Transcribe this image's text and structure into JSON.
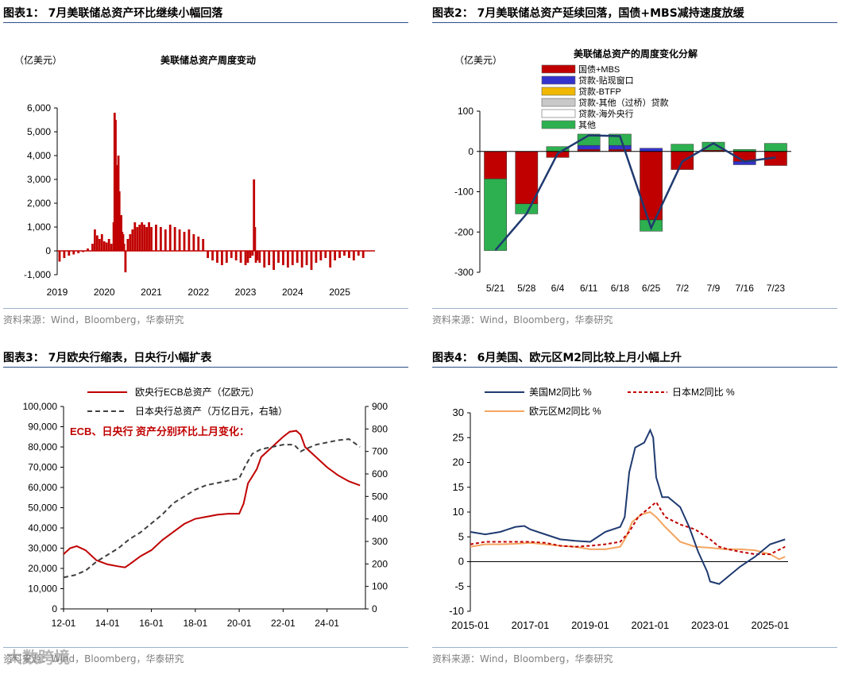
{
  "source_note": "资料来源：Wind，Bloomberg，华泰研究",
  "watermark": "大数跨境",
  "chart_data": [
    {
      "id": "chart1",
      "type": "bar",
      "heading": "图表1：  7月美联储总资产环比继续小幅回落",
      "title": "美联储总资产周度变动",
      "unit": "（亿美元）",
      "color": "#c00000",
      "x_ticks": [
        "2019",
        "2020",
        "2021",
        "2022",
        "2023",
        "2024",
        "2025"
      ],
      "xlim": [
        2019.0,
        2025.75
      ],
      "ylim": [
        -1000,
        7000
      ],
      "y_ticks": [
        -1000,
        0,
        1000,
        2000,
        3000,
        4000,
        5000,
        6000
      ],
      "y_tick_labels": [
        "-1,000",
        "0",
        "1,000",
        "2,000",
        "3,000",
        "4,000",
        "5,000",
        "6,000"
      ],
      "x": [
        2019.05,
        2019.15,
        2019.25,
        2019.35,
        2019.45,
        2019.55,
        2019.65,
        2019.75,
        2019.8,
        2019.85,
        2019.9,
        2019.95,
        2020.0,
        2020.05,
        2020.1,
        2020.15,
        2020.2,
        2020.22,
        2020.24,
        2020.26,
        2020.28,
        2020.3,
        2020.32,
        2020.34,
        2020.36,
        2020.38,
        2020.4,
        2020.42,
        2020.45,
        2020.5,
        2020.55,
        2020.6,
        2020.65,
        2020.7,
        2020.75,
        2020.8,
        2020.85,
        2020.9,
        2020.95,
        2021.0,
        2021.1,
        2021.2,
        2021.3,
        2021.4,
        2021.5,
        2021.6,
        2021.7,
        2021.8,
        2021.9,
        2022.0,
        2022.1,
        2022.2,
        2022.3,
        2022.4,
        2022.5,
        2022.6,
        2022.7,
        2022.8,
        2022.9,
        2023.0,
        2023.05,
        2023.1,
        2023.15,
        2023.18,
        2023.2,
        2023.22,
        2023.25,
        2023.3,
        2023.4,
        2023.5,
        2023.6,
        2023.7,
        2023.8,
        2023.9,
        2024.0,
        2024.1,
        2024.2,
        2024.3,
        2024.4,
        2024.5,
        2024.6,
        2024.7,
        2024.8,
        2024.9,
        2025.0,
        2025.1,
        2025.2,
        2025.3,
        2025.4,
        2025.5
      ],
      "values": [
        -450,
        -300,
        -200,
        -150,
        -100,
        -50,
        100,
        300,
        900,
        650,
        500,
        700,
        400,
        350,
        500,
        300,
        1200,
        5800,
        5500,
        3600,
        2800,
        4000,
        2500,
        1200,
        1500,
        800,
        700,
        300,
        -900,
        500,
        700,
        900,
        1200,
        1000,
        1100,
        1200,
        1100,
        1000,
        1200,
        1000,
        1100,
        1000,
        900,
        1100,
        1000,
        900,
        800,
        900,
        700,
        600,
        500,
        -300,
        -400,
        -500,
        -600,
        -500,
        -300,
        -400,
        -500,
        -600,
        -500,
        -300,
        -200,
        3000,
        1000,
        -500,
        -400,
        -500,
        -700,
        -600,
        -800,
        -500,
        -600,
        -700,
        -600,
        -500,
        -700,
        -600,
        -800,
        -500,
        -400,
        -300,
        -700,
        -400,
        -300,
        -200,
        -300,
        -400,
        -200,
        -300
      ]
    },
    {
      "id": "chart2",
      "type": "stacked-bar-line",
      "heading": "图表2：  7月美联储总资产延续回落，国债+MBS减持速度放缓",
      "title": "美联储总资产的周度变化分解",
      "unit": "（亿美元）",
      "categories": [
        "5/21",
        "5/28",
        "6/4",
        "6/11",
        "6/18",
        "6/25",
        "7/2",
        "7/9",
        "7/16",
        "7/23"
      ],
      "ylim": [
        -300,
        100
      ],
      "y_ticks": [
        -300,
        -200,
        -100,
        0,
        100
      ],
      "series": [
        {
          "name": "国债+MBS",
          "color": "#c00000",
          "values": [
            -68,
            -130,
            -15,
            5,
            5,
            -170,
            -45,
            3,
            -25,
            -35
          ]
        },
        {
          "name": "贷款-贴现窗口",
          "color": "#3333cc",
          "values": [
            0,
            0,
            0,
            10,
            10,
            8,
            0,
            0,
            -8,
            0
          ]
        },
        {
          "name": "贷款-BTFP",
          "color": "#f0b800",
          "values": [
            0,
            0,
            0,
            0,
            0,
            0,
            0,
            0,
            0,
            0
          ]
        },
        {
          "name": "贷款-其他（过桥）贷款",
          "color": "#c8c8c8",
          "values": [
            0,
            0,
            0,
            0,
            0,
            0,
            0,
            0,
            0,
            0
          ]
        },
        {
          "name": "贷款-海外央行",
          "color": "#ffffff",
          "values": [
            0,
            0,
            0,
            0,
            0,
            0,
            0,
            0,
            0,
            0
          ]
        },
        {
          "name": "其他",
          "color": "#2db050",
          "values": [
            -178,
            -25,
            12,
            28,
            28,
            -28,
            18,
            20,
            5,
            20
          ]
        }
      ],
      "line": {
        "name": "总资产变化",
        "color": "#1f3a70",
        "values": [
          -245,
          -155,
          -5,
          40,
          38,
          -190,
          -25,
          20,
          -25,
          -15
        ]
      }
    },
    {
      "id": "chart3",
      "type": "line",
      "heading": "图表3：  7月欧央行缩表，日央行小幅扩表",
      "x_ticks": [
        "12-01",
        "14-01",
        "16-01",
        "18-01",
        "20-01",
        "22-01",
        "24-01"
      ],
      "xlim": [
        2012.0,
        2025.75
      ],
      "ylim": [
        0,
        100000
      ],
      "y_ticks": [
        0,
        10000,
        20000,
        30000,
        40000,
        50000,
        60000,
        70000,
        80000,
        90000,
        100000
      ],
      "y_tick_labels": [
        "0",
        "10,000",
        "20,000",
        "30,000",
        "40,000",
        "50,000",
        "60,000",
        "70,000",
        "80,000",
        "90,000",
        "100,000"
      ],
      "y2lim": [
        0,
        900
      ],
      "y2_ticks": [
        0,
        100,
        200,
        300,
        400,
        500,
        600,
        700,
        800,
        900
      ],
      "annotation": "ECB、日央行 资产分别环比上月变化：",
      "series": [
        {
          "name": "欧央行ECB总资产（亿欧元）",
          "axis": "left",
          "color": "#c00000",
          "style": "solid",
          "x": [
            2012.0,
            2012.3,
            2012.6,
            2013.0,
            2013.5,
            2014.0,
            2014.5,
            2014.8,
            2015.0,
            2015.5,
            2016.0,
            2016.5,
            2017.0,
            2017.5,
            2018.0,
            2018.5,
            2019.0,
            2019.5,
            2020.0,
            2020.2,
            2020.4,
            2020.8,
            2021.0,
            2021.5,
            2022.0,
            2022.3,
            2022.6,
            2022.8,
            2023.0,
            2023.5,
            2024.0,
            2024.5,
            2025.0,
            2025.5
          ],
          "y": [
            27000,
            30000,
            31000,
            29000,
            24000,
            22000,
            21000,
            20500,
            22000,
            26000,
            29000,
            34000,
            38000,
            42000,
            44500,
            45500,
            46500,
            47000,
            47000,
            52000,
            62000,
            69000,
            75000,
            80000,
            85000,
            87500,
            88000,
            86000,
            80000,
            75000,
            70000,
            66000,
            63000,
            61000
          ]
        },
        {
          "name": "日本央行总资产（万亿日元，右轴）",
          "axis": "right",
          "color": "#404040",
          "style": "dashed",
          "x": [
            2012.0,
            2012.5,
            2013.0,
            2013.5,
            2014.0,
            2014.5,
            2015.0,
            2015.5,
            2016.0,
            2016.5,
            2017.0,
            2017.5,
            2018.0,
            2018.5,
            2019.0,
            2019.5,
            2020.0,
            2020.3,
            2020.6,
            2021.0,
            2021.5,
            2022.0,
            2022.5,
            2022.8,
            2023.0,
            2023.5,
            2024.0,
            2024.5,
            2025.0,
            2025.5
          ],
          "y": [
            140,
            150,
            170,
            210,
            240,
            270,
            310,
            340,
            380,
            420,
            470,
            500,
            530,
            550,
            560,
            570,
            580,
            640,
            690,
            710,
            720,
            730,
            730,
            700,
            710,
            730,
            740,
            750,
            755,
            720
          ]
        }
      ]
    },
    {
      "id": "chart4",
      "type": "line",
      "heading": "图表4：  6月美国、欧元区M2同比较上月小幅上升",
      "x_ticks": [
        "2015-01",
        "2017-01",
        "2019-01",
        "2021-01",
        "2023-01",
        "2025-01"
      ],
      "xlim": [
        2015.0,
        2025.6
      ],
      "ylim": [
        -10,
        30
      ],
      "y_ticks": [
        -10,
        -5,
        0,
        5,
        10,
        15,
        20,
        25,
        30
      ],
      "series": [
        {
          "name": "美国M2同比  %",
          "color": "#1f3a70",
          "style": "solid",
          "x": [
            2015.0,
            2015.5,
            2016.0,
            2016.5,
            2016.8,
            2017.0,
            2017.5,
            2018.0,
            2018.5,
            2019.0,
            2019.5,
            2020.0,
            2020.15,
            2020.3,
            2020.5,
            2020.8,
            2021.0,
            2021.1,
            2021.2,
            2021.4,
            2021.6,
            2021.8,
            2022.0,
            2022.3,
            2022.6,
            2022.9,
            2023.0,
            2023.3,
            2023.6,
            2024.0,
            2024.5,
            2025.0,
            2025.5
          ],
          "y": [
            6,
            5.5,
            6,
            7,
            7.2,
            6.5,
            5.5,
            4.5,
            4.2,
            4,
            6,
            7,
            9,
            18,
            23,
            24,
            26.5,
            25,
            17,
            13,
            13,
            12,
            11,
            7,
            2,
            -2,
            -4,
            -4.5,
            -3,
            -1,
            1,
            3.5,
            4.5
          ]
        },
        {
          "name": "日本M2同比  %",
          "color": "#c00000",
          "style": "dashed",
          "x": [
            2015.0,
            2015.5,
            2016.0,
            2016.5,
            2017.0,
            2017.5,
            2018.0,
            2018.5,
            2019.0,
            2019.5,
            2020.0,
            2020.3,
            2020.6,
            2021.0,
            2021.2,
            2021.5,
            2022.0,
            2022.5,
            2023.0,
            2023.3,
            2023.6,
            2024.0,
            2024.5,
            2025.0,
            2025.5
          ],
          "y": [
            3.5,
            4,
            4,
            4,
            4,
            3.8,
            3.2,
            3,
            3.2,
            3.5,
            4,
            6,
            9,
            11,
            12,
            9,
            7.5,
            6.5,
            4.5,
            3,
            2.5,
            2,
            1.5,
            1.5,
            3
          ]
        },
        {
          "name": "欧元区M2同比  %",
          "color": "#f4a460",
          "style": "solid",
          "x": [
            2015.0,
            2015.5,
            2016.0,
            2016.5,
            2017.0,
            2017.5,
            2018.0,
            2018.5,
            2019.0,
            2019.5,
            2019.8,
            2020.0,
            2020.2,
            2020.4,
            2020.7,
            2021.0,
            2021.2,
            2021.5,
            2022.0,
            2022.5,
            2023.0,
            2023.5,
            2024.0,
            2024.5,
            2025.0,
            2025.3,
            2025.5
          ],
          "y": [
            3,
            3.5,
            3.5,
            3.6,
            3.8,
            3.5,
            3.2,
            3,
            2.5,
            2.5,
            2.8,
            3,
            5,
            8,
            9.5,
            10,
            9,
            7,
            4,
            3,
            2.8,
            2.5,
            2.5,
            2.3,
            1.5,
            0.5,
            1
          ]
        }
      ]
    }
  ]
}
